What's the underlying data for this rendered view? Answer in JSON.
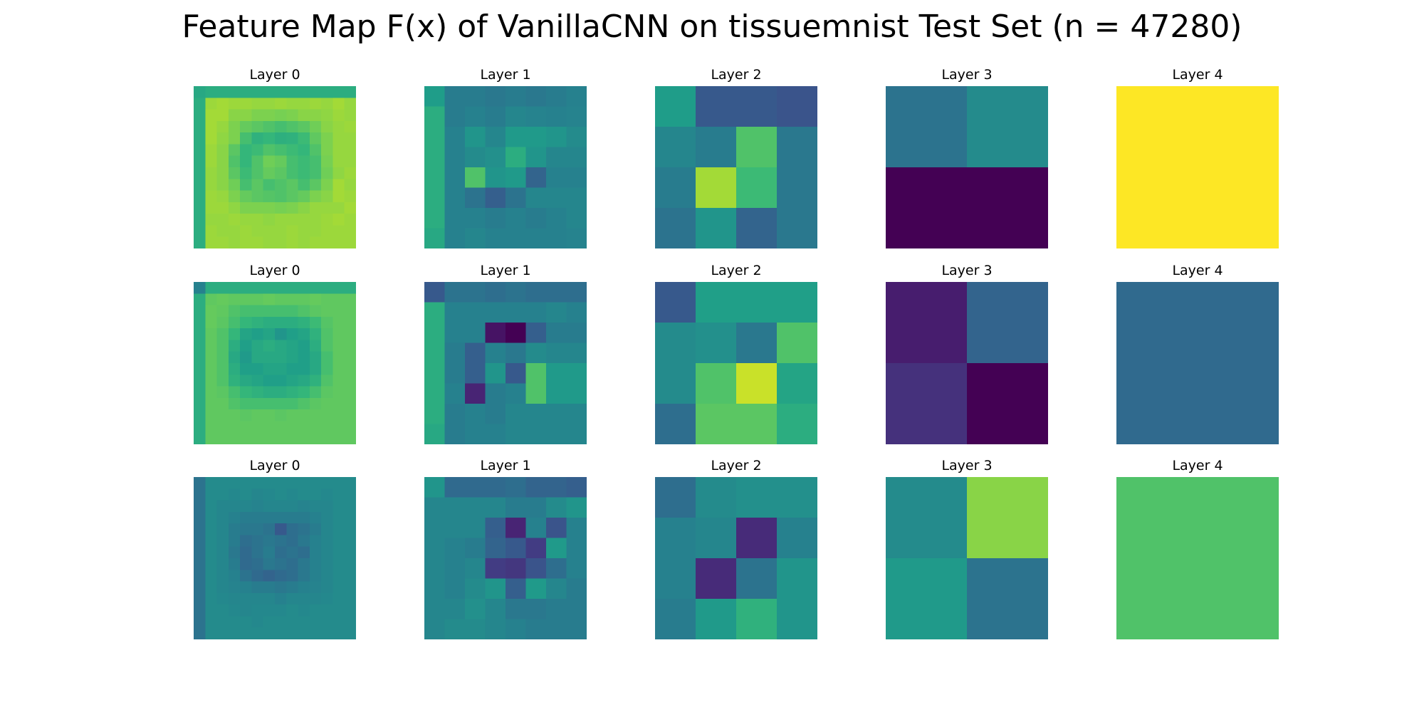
{
  "title": "Feature Map F(x) of VanillaCNN on tissuemnist Test Set (n = 47280)",
  "colormap": "viridis",
  "panel_color_scale": "independent per panel",
  "chart_data": [
    {
      "type": "heatmap",
      "title": "Layer 0",
      "values": [
        [
          0.6,
          0.62,
          0.62,
          0.62,
          0.62,
          0.62,
          0.62,
          0.62,
          0.62,
          0.62,
          0.62,
          0.62,
          0.62,
          0.62
        ],
        [
          0.62,
          0.85,
          0.86,
          0.85,
          0.85,
          0.84,
          0.84,
          0.85,
          0.84,
          0.84,
          0.85,
          0.84,
          0.86,
          0.84
        ],
        [
          0.62,
          0.86,
          0.86,
          0.82,
          0.82,
          0.8,
          0.8,
          0.79,
          0.8,
          0.82,
          0.82,
          0.83,
          0.85,
          0.84
        ],
        [
          0.62,
          0.86,
          0.84,
          0.8,
          0.76,
          0.74,
          0.72,
          0.7,
          0.72,
          0.74,
          0.78,
          0.82,
          0.84,
          0.85
        ],
        [
          0.62,
          0.86,
          0.83,
          0.8,
          0.7,
          0.64,
          0.66,
          0.63,
          0.64,
          0.68,
          0.75,
          0.8,
          0.84,
          0.84
        ],
        [
          0.62,
          0.85,
          0.82,
          0.74,
          0.66,
          0.68,
          0.72,
          0.7,
          0.68,
          0.66,
          0.72,
          0.8,
          0.84,
          0.84
        ],
        [
          0.62,
          0.85,
          0.82,
          0.72,
          0.66,
          0.72,
          0.78,
          0.76,
          0.7,
          0.68,
          0.7,
          0.79,
          0.84,
          0.84
        ],
        [
          0.62,
          0.84,
          0.82,
          0.74,
          0.68,
          0.72,
          0.76,
          0.74,
          0.7,
          0.68,
          0.7,
          0.78,
          0.83,
          0.85
        ],
        [
          0.62,
          0.84,
          0.82,
          0.78,
          0.7,
          0.74,
          0.7,
          0.72,
          0.74,
          0.7,
          0.74,
          0.8,
          0.86,
          0.84
        ],
        [
          0.62,
          0.85,
          0.84,
          0.8,
          0.76,
          0.74,
          0.73,
          0.72,
          0.74,
          0.76,
          0.8,
          0.82,
          0.86,
          0.85
        ],
        [
          0.62,
          0.85,
          0.85,
          0.83,
          0.8,
          0.8,
          0.8,
          0.79,
          0.8,
          0.82,
          0.84,
          0.84,
          0.84,
          0.86
        ],
        [
          0.62,
          0.84,
          0.84,
          0.85,
          0.84,
          0.84,
          0.83,
          0.84,
          0.84,
          0.84,
          0.84,
          0.85,
          0.86,
          0.85
        ],
        [
          0.62,
          0.85,
          0.84,
          0.84,
          0.85,
          0.84,
          0.84,
          0.84,
          0.85,
          0.84,
          0.84,
          0.85,
          0.85,
          0.85
        ],
        [
          0.62,
          0.85,
          0.85,
          0.84,
          0.85,
          0.85,
          0.84,
          0.84,
          0.85,
          0.84,
          0.85,
          0.85,
          0.85,
          0.85
        ]
      ]
    },
    {
      "type": "heatmap",
      "title": "Layer 1",
      "values": [
        [
          0.55,
          0.42,
          0.42,
          0.4,
          0.42,
          0.4,
          0.42,
          0.44
        ],
        [
          0.62,
          0.42,
          0.44,
          0.42,
          0.46,
          0.45,
          0.44,
          0.45
        ],
        [
          0.62,
          0.44,
          0.52,
          0.46,
          0.54,
          0.54,
          0.52,
          0.48
        ],
        [
          0.62,
          0.44,
          0.48,
          0.5,
          0.62,
          0.52,
          0.46,
          0.46
        ],
        [
          0.62,
          0.44,
          0.72,
          0.52,
          0.54,
          0.32,
          0.44,
          0.44
        ],
        [
          0.62,
          0.44,
          0.38,
          0.3,
          0.38,
          0.46,
          0.46,
          0.46
        ],
        [
          0.62,
          0.44,
          0.44,
          0.42,
          0.44,
          0.42,
          0.44,
          0.46
        ],
        [
          0.6,
          0.44,
          0.46,
          0.44,
          0.44,
          0.44,
          0.44,
          0.45
        ]
      ]
    },
    {
      "type": "heatmap",
      "title": "Layer 2",
      "values": [
        [
          0.55,
          0.28,
          0.28,
          0.26
        ],
        [
          0.46,
          0.42,
          0.72,
          0.4
        ],
        [
          0.42,
          0.86,
          0.68,
          0.4
        ],
        [
          0.38,
          0.52,
          0.32,
          0.4
        ]
      ]
    },
    {
      "type": "heatmap",
      "title": "Layer 3",
      "values": [
        [
          0.38,
          0.48
        ],
        [
          0.0,
          0.0
        ]
      ]
    },
    {
      "type": "heatmap",
      "title": "Layer 4",
      "values": [
        [
          1.0
        ]
      ]
    },
    {
      "type": "heatmap",
      "title": "Layer 0",
      "values": [
        [
          0.44,
          0.62,
          0.62,
          0.62,
          0.62,
          0.62,
          0.62,
          0.62,
          0.62,
          0.62,
          0.62,
          0.62,
          0.62,
          0.62
        ],
        [
          0.62,
          0.75,
          0.76,
          0.75,
          0.75,
          0.75,
          0.76,
          0.75,
          0.75,
          0.75,
          0.76,
          0.75,
          0.75,
          0.75
        ],
        [
          0.62,
          0.76,
          0.75,
          0.72,
          0.7,
          0.7,
          0.7,
          0.7,
          0.7,
          0.72,
          0.74,
          0.75,
          0.75,
          0.75
        ],
        [
          0.62,
          0.76,
          0.74,
          0.7,
          0.66,
          0.64,
          0.62,
          0.62,
          0.62,
          0.64,
          0.68,
          0.73,
          0.75,
          0.75
        ],
        [
          0.62,
          0.75,
          0.72,
          0.66,
          0.58,
          0.56,
          0.58,
          0.52,
          0.56,
          0.58,
          0.64,
          0.72,
          0.75,
          0.75
        ],
        [
          0.62,
          0.75,
          0.72,
          0.62,
          0.56,
          0.6,
          0.62,
          0.6,
          0.58,
          0.56,
          0.62,
          0.72,
          0.75,
          0.75
        ],
        [
          0.62,
          0.75,
          0.72,
          0.6,
          0.54,
          0.6,
          0.6,
          0.6,
          0.58,
          0.56,
          0.6,
          0.7,
          0.75,
          0.75
        ],
        [
          0.62,
          0.75,
          0.72,
          0.62,
          0.56,
          0.56,
          0.58,
          0.58,
          0.56,
          0.56,
          0.6,
          0.7,
          0.75,
          0.75
        ],
        [
          0.62,
          0.75,
          0.72,
          0.64,
          0.6,
          0.58,
          0.56,
          0.56,
          0.58,
          0.6,
          0.64,
          0.72,
          0.75,
          0.75
        ],
        [
          0.62,
          0.75,
          0.74,
          0.7,
          0.66,
          0.64,
          0.62,
          0.62,
          0.64,
          0.66,
          0.7,
          0.74,
          0.75,
          0.75
        ],
        [
          0.62,
          0.75,
          0.75,
          0.72,
          0.7,
          0.7,
          0.7,
          0.7,
          0.7,
          0.72,
          0.74,
          0.75,
          0.75,
          0.75
        ],
        [
          0.62,
          0.75,
          0.75,
          0.75,
          0.74,
          0.75,
          0.75,
          0.74,
          0.75,
          0.75,
          0.75,
          0.75,
          0.75,
          0.75
        ],
        [
          0.62,
          0.75,
          0.75,
          0.75,
          0.75,
          0.75,
          0.75,
          0.75,
          0.75,
          0.75,
          0.75,
          0.75,
          0.75,
          0.75
        ],
        [
          0.62,
          0.75,
          0.75,
          0.75,
          0.75,
          0.75,
          0.75,
          0.75,
          0.75,
          0.75,
          0.75,
          0.75,
          0.75,
          0.75
        ]
      ]
    },
    {
      "type": "heatmap",
      "title": "Layer 1",
      "values": [
        [
          0.28,
          0.38,
          0.38,
          0.36,
          0.38,
          0.36,
          0.36,
          0.36
        ],
        [
          0.62,
          0.44,
          0.44,
          0.44,
          0.44,
          0.44,
          0.46,
          0.44
        ],
        [
          0.62,
          0.44,
          0.44,
          0.05,
          0.0,
          0.3,
          0.42,
          0.42
        ],
        [
          0.62,
          0.42,
          0.3,
          0.44,
          0.4,
          0.48,
          0.46,
          0.46
        ],
        [
          0.62,
          0.42,
          0.3,
          0.52,
          0.28,
          0.72,
          0.54,
          0.54
        ],
        [
          0.62,
          0.44,
          0.1,
          0.42,
          0.44,
          0.72,
          0.54,
          0.54
        ],
        [
          0.62,
          0.42,
          0.44,
          0.42,
          0.46,
          0.46,
          0.46,
          0.46
        ],
        [
          0.6,
          0.42,
          0.44,
          0.44,
          0.46,
          0.46,
          0.46,
          0.46
        ]
      ]
    },
    {
      "type": "heatmap",
      "title": "Layer 2",
      "values": [
        [
          0.28,
          0.56,
          0.56,
          0.56
        ],
        [
          0.48,
          0.5,
          0.4,
          0.72
        ],
        [
          0.48,
          0.72,
          0.92,
          0.58
        ],
        [
          0.36,
          0.74,
          0.74,
          0.62
        ]
      ]
    },
    {
      "type": "heatmap",
      "title": "Layer 3",
      "values": [
        [
          0.08,
          0.32
        ],
        [
          0.14,
          0.0
        ]
      ]
    },
    {
      "type": "heatmap",
      "title": "Layer 4",
      "values": [
        [
          0.34
        ]
      ]
    },
    {
      "type": "heatmap",
      "title": "Layer 0",
      "values": [
        [
          0.38,
          0.48,
          0.48,
          0.48,
          0.48,
          0.48,
          0.48,
          0.48,
          0.48,
          0.48,
          0.48,
          0.48,
          0.48,
          0.48
        ],
        [
          0.38,
          0.48,
          0.48,
          0.47,
          0.48,
          0.46,
          0.47,
          0.48,
          0.47,
          0.48,
          0.48,
          0.47,
          0.48,
          0.48
        ],
        [
          0.38,
          0.48,
          0.46,
          0.46,
          0.46,
          0.45,
          0.46,
          0.46,
          0.46,
          0.45,
          0.46,
          0.46,
          0.48,
          0.48
        ],
        [
          0.38,
          0.48,
          0.46,
          0.44,
          0.42,
          0.42,
          0.42,
          0.42,
          0.42,
          0.42,
          0.44,
          0.46,
          0.48,
          0.48
        ],
        [
          0.38,
          0.48,
          0.46,
          0.42,
          0.4,
          0.4,
          0.38,
          0.28,
          0.36,
          0.38,
          0.42,
          0.46,
          0.48,
          0.48
        ],
        [
          0.38,
          0.48,
          0.46,
          0.42,
          0.36,
          0.38,
          0.4,
          0.38,
          0.36,
          0.4,
          0.44,
          0.46,
          0.48,
          0.48
        ],
        [
          0.38,
          0.48,
          0.46,
          0.4,
          0.34,
          0.38,
          0.42,
          0.36,
          0.38,
          0.36,
          0.44,
          0.46,
          0.48,
          0.48
        ],
        [
          0.38,
          0.48,
          0.46,
          0.42,
          0.34,
          0.36,
          0.4,
          0.38,
          0.36,
          0.4,
          0.44,
          0.46,
          0.48,
          0.48
        ],
        [
          0.38,
          0.48,
          0.46,
          0.44,
          0.38,
          0.34,
          0.32,
          0.34,
          0.36,
          0.4,
          0.44,
          0.46,
          0.48,
          0.48
        ],
        [
          0.38,
          0.48,
          0.46,
          0.45,
          0.44,
          0.42,
          0.42,
          0.4,
          0.42,
          0.44,
          0.45,
          0.46,
          0.48,
          0.48
        ],
        [
          0.38,
          0.48,
          0.47,
          0.46,
          0.46,
          0.46,
          0.46,
          0.44,
          0.46,
          0.46,
          0.46,
          0.47,
          0.48,
          0.48
        ],
        [
          0.38,
          0.48,
          0.48,
          0.47,
          0.46,
          0.47,
          0.47,
          0.47,
          0.48,
          0.47,
          0.48,
          0.48,
          0.48,
          0.48
        ],
        [
          0.38,
          0.48,
          0.48,
          0.48,
          0.48,
          0.47,
          0.48,
          0.48,
          0.48,
          0.48,
          0.48,
          0.48,
          0.48,
          0.48
        ],
        [
          0.38,
          0.48,
          0.48,
          0.48,
          0.48,
          0.48,
          0.48,
          0.48,
          0.48,
          0.48,
          0.48,
          0.48,
          0.48,
          0.48
        ]
      ]
    },
    {
      "type": "heatmap",
      "title": "Layer 1",
      "values": [
        [
          0.52,
          0.34,
          0.34,
          0.34,
          0.36,
          0.32,
          0.32,
          0.3
        ],
        [
          0.46,
          0.46,
          0.46,
          0.46,
          0.42,
          0.42,
          0.48,
          0.52
        ],
        [
          0.46,
          0.46,
          0.46,
          0.3,
          0.1,
          0.44,
          0.26,
          0.44
        ],
        [
          0.46,
          0.44,
          0.42,
          0.32,
          0.28,
          0.18,
          0.54,
          0.44
        ],
        [
          0.46,
          0.44,
          0.46,
          0.18,
          0.16,
          0.26,
          0.36,
          0.44
        ],
        [
          0.46,
          0.44,
          0.48,
          0.52,
          0.3,
          0.54,
          0.46,
          0.42
        ],
        [
          0.46,
          0.46,
          0.5,
          0.46,
          0.4,
          0.4,
          0.42,
          0.42
        ],
        [
          0.46,
          0.48,
          0.48,
          0.46,
          0.44,
          0.42,
          0.42,
          0.42
        ]
      ]
    },
    {
      "type": "heatmap",
      "title": "Layer 2",
      "values": [
        [
          0.36,
          0.48,
          0.5,
          0.5
        ],
        [
          0.44,
          0.46,
          0.12,
          0.44
        ],
        [
          0.44,
          0.12,
          0.38,
          0.52
        ],
        [
          0.42,
          0.54,
          0.64,
          0.52
        ]
      ]
    },
    {
      "type": "heatmap",
      "title": "Layer 3",
      "values": [
        [
          0.48,
          0.82
        ],
        [
          0.54,
          0.38
        ]
      ]
    },
    {
      "type": "heatmap",
      "title": "Layer 4",
      "values": [
        [
          0.72
        ]
      ]
    }
  ]
}
